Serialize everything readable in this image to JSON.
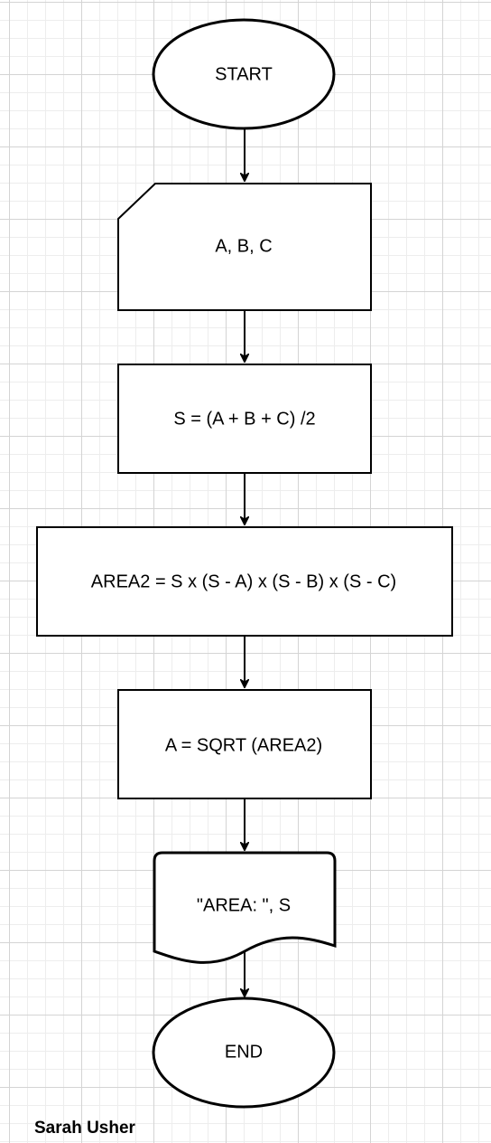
{
  "nodes": {
    "start": {
      "label": "START",
      "shape": "terminator"
    },
    "input": {
      "label": "A, B, C",
      "shape": "manual-input"
    },
    "semiperimeter": {
      "label": "S = (A + B + C) /2",
      "shape": "process"
    },
    "area_squared": {
      "label": "AREA2 = S x (S - A) x (S - B) x (S - C)",
      "shape": "process"
    },
    "square_root": {
      "label": "A = SQRT (AREA2)",
      "shape": "process"
    },
    "output": {
      "label": "\"AREA: \", S",
      "shape": "document"
    },
    "end": {
      "label": "END",
      "shape": "terminator"
    }
  },
  "edges": [
    {
      "from": "start",
      "to": "input"
    },
    {
      "from": "input",
      "to": "semiperimeter"
    },
    {
      "from": "semiperimeter",
      "to": "area_squared"
    },
    {
      "from": "area_squared",
      "to": "square_root"
    },
    {
      "from": "square_root",
      "to": "output"
    },
    {
      "from": "output",
      "to": "end"
    }
  ],
  "author": "Sarah Usher",
  "colors": {
    "stroke": "#000000",
    "fill": "#ffffff",
    "grid_major": "#d4d4d4",
    "grid_minor": "#ededed"
  }
}
